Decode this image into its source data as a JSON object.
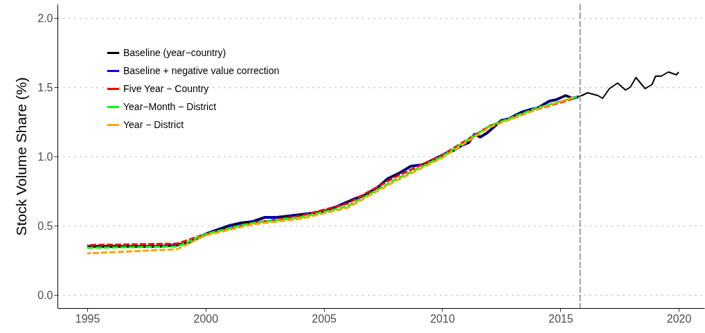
{
  "chart_data": {
    "type": "line",
    "ylabel": "Stock Volume Share (%)",
    "xlim": [
      1993.74,
      2021.08
    ],
    "xticks": [
      1995,
      2000,
      2005,
      2010,
      2015,
      2020
    ],
    "ylim": [
      -0.095,
      2.1
    ],
    "yticks": [
      {
        "value": 0,
        "label": "0.0"
      },
      {
        "value": 0.5,
        "label": "0.5"
      },
      {
        "value": 1,
        "label": "1.0"
      },
      {
        "value": 1.5,
        "label": "1.5"
      },
      {
        "value": 2,
        "label": "2.0"
      }
    ],
    "grid": "y",
    "legend": "top left",
    "ref_lines": [
      {
        "axis": "x",
        "value": 2015.83,
        "color": "#808080",
        "line_style": "dashed"
      }
    ],
    "series": [
      {
        "name": "Baseline (year−country)",
        "color": "#000000",
        "line_style": "solid",
        "x": [
          1995,
          1996,
          1997,
          1998,
          1998.8,
          1999.3,
          2000,
          2000.5,
          2001,
          2001.5,
          2002,
          2002.5,
          2003,
          2004,
          2004.97,
          2005.56,
          2006.24,
          2006.73,
          2007.3,
          2007.7,
          2008.19,
          2008.68,
          2009.17,
          2009.66,
          2010.25,
          2010.44,
          2010.83,
          2011.12,
          2011.37,
          2011.61,
          2011.9,
          2012.5,
          2012.78,
          2013.36,
          2013.75,
          2014.04,
          2014.53,
          2014.82,
          2015.22,
          2015.51,
          2015.9,
          2016.15,
          2016.58,
          2016.78,
          2017.07,
          2017.41,
          2017.75,
          2017.95,
          2018.19,
          2018.58,
          2018.87,
          2019.02,
          2019.26,
          2019.56,
          2019.9,
          2020
        ],
        "values": [
          0.35,
          0.35,
          0.35,
          0.35,
          0.36,
          0.38,
          0.44,
          0.47,
          0.5,
          0.52,
          0.53,
          0.56,
          0.56,
          0.58,
          0.6,
          0.64,
          0.69,
          0.72,
          0.78,
          0.84,
          0.88,
          0.93,
          0.94,
          0.98,
          1.03,
          1.04,
          1.08,
          1.1,
          1.16,
          1.14,
          1.17,
          1.26,
          1.27,
          1.32,
          1.34,
          1.35,
          1.4,
          1.41,
          1.44,
          1.42,
          1.44,
          1.46,
          1.44,
          1.42,
          1.49,
          1.53,
          1.48,
          1.5,
          1.57,
          1.49,
          1.52,
          1.58,
          1.58,
          1.61,
          1.59,
          1.61
        ]
      },
      {
        "name": "Baseline + negative value correction",
        "color": "#0000ff",
        "line_style": "solid",
        "x": [
          1995,
          1996,
          1997,
          1998,
          1998.8,
          1999.3,
          2000,
          2000.5,
          2001,
          2001.5,
          2002,
          2002.5,
          2003,
          2004,
          2004.97,
          2005.56,
          2006.24,
          2006.73,
          2007.3,
          2007.7,
          2008.19,
          2008.68,
          2009.17,
          2009.66,
          2010.25,
          2010.44,
          2010.83,
          2011.12,
          2011.37,
          2011.61,
          2011.9,
          2012.5,
          2012.78,
          2013.36,
          2013.75,
          2014.04,
          2014.53,
          2014.82,
          2015.22,
          2015.51,
          2015.75
        ],
        "values": [
          0.35,
          0.35,
          0.35,
          0.35,
          0.36,
          0.38,
          0.44,
          0.47,
          0.5,
          0.52,
          0.53,
          0.56,
          0.56,
          0.58,
          0.6,
          0.64,
          0.69,
          0.72,
          0.78,
          0.84,
          0.88,
          0.93,
          0.94,
          0.98,
          1.03,
          1.04,
          1.08,
          1.1,
          1.16,
          1.14,
          1.17,
          1.26,
          1.27,
          1.32,
          1.34,
          1.35,
          1.4,
          1.41,
          1.44,
          1.42,
          1.43
        ]
      },
      {
        "name": "Five Year − Country",
        "color": "#ff0000",
        "line_style": "dashed",
        "x": [
          1995,
          1998.8,
          2000,
          2002,
          2004,
          2006,
          2008,
          2010,
          2012,
          2014,
          2015.6
        ],
        "values": [
          0.36,
          0.37,
          0.44,
          0.52,
          0.57,
          0.66,
          0.85,
          1.01,
          1.22,
          1.34,
          1.42
        ]
      },
      {
        "name": "Year−Month − District",
        "color": "#00ff00",
        "line_style": "dashed",
        "x": [
          1995,
          1998.8,
          2000,
          2002,
          2004,
          2006,
          2008,
          2010,
          2012,
          2014,
          2015.7
        ],
        "values": [
          0.34,
          0.35,
          0.44,
          0.52,
          0.56,
          0.64,
          0.83,
          1.0,
          1.22,
          1.35,
          1.43
        ]
      },
      {
        "name": "Year − District",
        "color": "#ffa500",
        "line_style": "dashed",
        "x": [
          1995,
          1998.8,
          2000,
          2002,
          2004,
          2006,
          2008,
          2010,
          2012,
          2014,
          2015.6
        ],
        "values": [
          0.3,
          0.33,
          0.43,
          0.51,
          0.55,
          0.63,
          0.82,
          0.99,
          1.21,
          1.34,
          1.43
        ]
      }
    ]
  }
}
